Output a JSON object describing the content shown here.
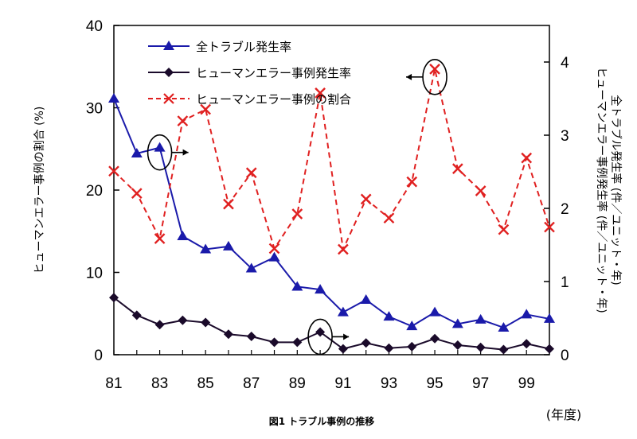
{
  "chart_data": {
    "type": "line",
    "caption": "図1 トラブル事例の推移",
    "xlabel": "(年度)",
    "ylabel_left": "ヒューマンエラー事例の割合 (%)",
    "ylabel_right_1": "ヒューマンエラー事例発生率 (件／ユニット・年)",
    "ylabel_right_2": "全トラブル発生率 (件／ユニット・年)",
    "x": [
      81,
      82,
      83,
      84,
      85,
      86,
      87,
      88,
      89,
      90,
      91,
      92,
      93,
      94,
      95,
      96,
      97,
      98,
      99,
      100
    ],
    "x_tick_labels": [
      "81",
      "83",
      "85",
      "87",
      "89",
      "91",
      "93",
      "95",
      "97",
      "99"
    ],
    "y_left_ticks": [
      "0",
      "10",
      "20",
      "30",
      "40"
    ],
    "y_right_ticks": [
      "0",
      "1",
      "2",
      "3",
      "4"
    ],
    "xlim": [
      81,
      100
    ],
    "ylim_left": [
      0,
      40
    ],
    "ylim_right": [
      0,
      4.5
    ],
    "grid": false,
    "legend_position": "top-left",
    "series": [
      {
        "name": "全トラブル発生率",
        "axis": "right",
        "color": "#1a1aaa",
        "marker": "triangle",
        "style": "solid",
        "values": [
          3.5,
          2.75,
          2.83,
          1.62,
          1.44,
          1.48,
          1.18,
          1.33,
          0.93,
          0.89,
          0.58,
          0.75,
          0.52,
          0.39,
          0.58,
          0.42,
          0.48,
          0.37,
          0.55,
          0.49
        ]
      },
      {
        "name": "ヒューマンエラー事例発生率",
        "axis": "right",
        "color": "#1a0a2a",
        "marker": "diamond",
        "style": "solid",
        "values": [
          0.78,
          0.54,
          0.41,
          0.47,
          0.44,
          0.28,
          0.25,
          0.17,
          0.17,
          0.31,
          0.08,
          0.16,
          0.09,
          0.11,
          0.22,
          0.13,
          0.1,
          0.07,
          0.15,
          0.08
        ]
      },
      {
        "name": "ヒューマンエラー事例の割合",
        "axis": "left",
        "color": "#e02020",
        "marker": "x",
        "style": "dashed",
        "values": [
          22.3,
          19.6,
          14.1,
          28.4,
          29.8,
          18.3,
          22.1,
          12.9,
          17.1,
          31.8,
          12.8,
          18.9,
          16.6,
          21.0,
          34.7,
          22.6,
          19.9,
          15.2,
          23.9,
          15.5
        ]
      }
    ],
    "annotations": [
      {
        "x": 83,
        "series": "全トラブル発生率",
        "arrow": "right"
      },
      {
        "x": 90,
        "series": "ヒューマンエラー事例発生率",
        "arrow": "right"
      },
      {
        "x": 95,
        "series": "ヒューマンエラー事例の割合",
        "arrow": "left"
      }
    ]
  }
}
